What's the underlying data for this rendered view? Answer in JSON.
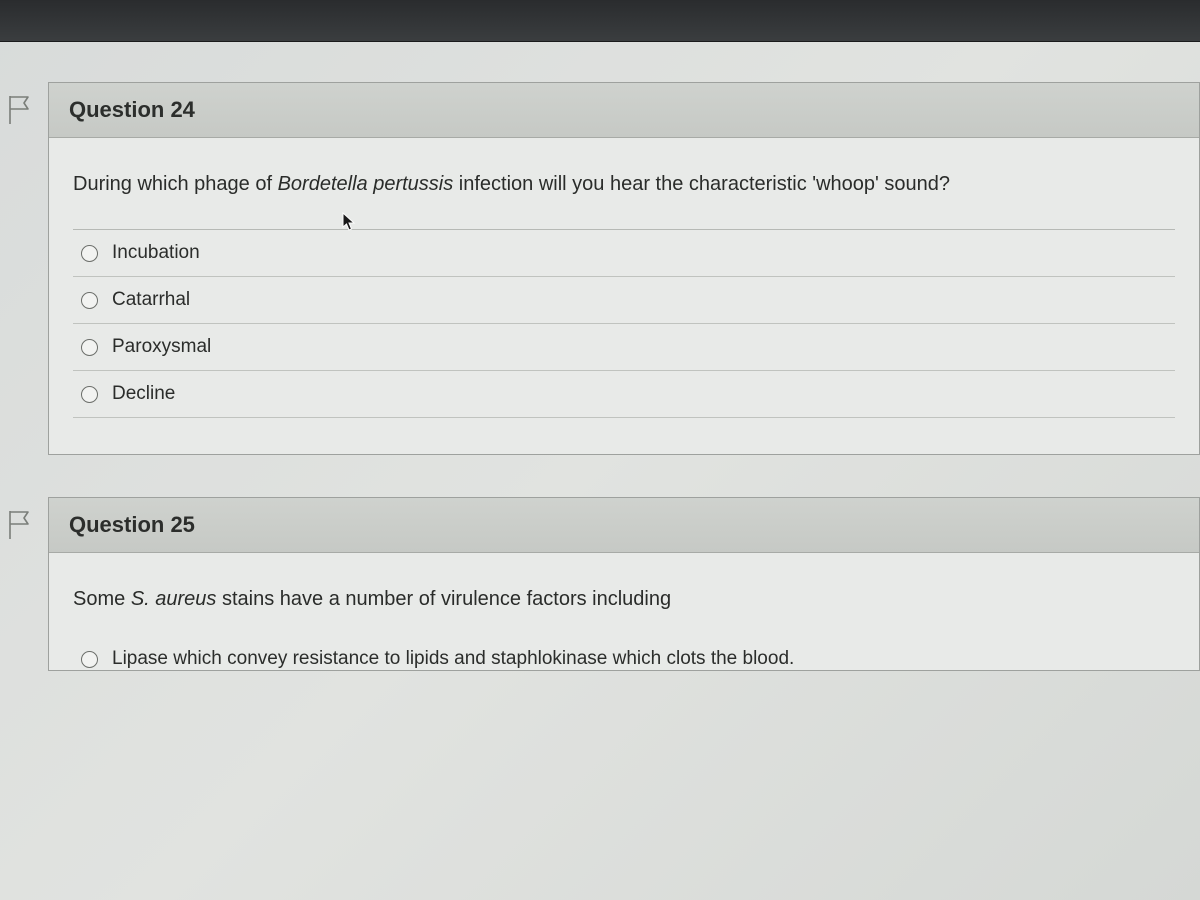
{
  "colors": {
    "page_bg_gradient": [
      "#d8dbda",
      "#e1e3e0",
      "#d5d8d5"
    ],
    "card_bg": "#e8eae8",
    "card_border": "#9ea19e",
    "header_bg_gradient": [
      "#cfd2ce",
      "#c6c9c5"
    ],
    "header_border": "#a7aaa6",
    "divider": "#c0c3bf",
    "text_primary": "#2a2c2a",
    "radio_border": "#6c6f6b",
    "radio_bg": "#f2f3f1",
    "flag_stroke": "#7a7e79",
    "flag_fill": "none"
  },
  "typography": {
    "heading_fontsize": 22,
    "body_fontsize": 20,
    "option_fontsize": 19,
    "heading_weight": 700
  },
  "questions": [
    {
      "number": "Question 24",
      "prompt_html": "During which phage of <em>Bordetella pertussis</em> infection will you hear the characteristic 'whoop' sound?",
      "options": [
        {
          "label": "Incubation",
          "selected": false
        },
        {
          "label": "Catarrhal",
          "selected": false
        },
        {
          "label": "Paroxysmal",
          "selected": false
        },
        {
          "label": "Decline",
          "selected": false
        }
      ]
    },
    {
      "number": "Question 25",
      "prompt_html": "Some <em>S. aureus</em> stains have a number of virulence factors including",
      "options": [
        {
          "label": "Lipase which convey resistance to lipids and staphlokinase which clots the blood.",
          "selected": false
        }
      ]
    }
  ]
}
